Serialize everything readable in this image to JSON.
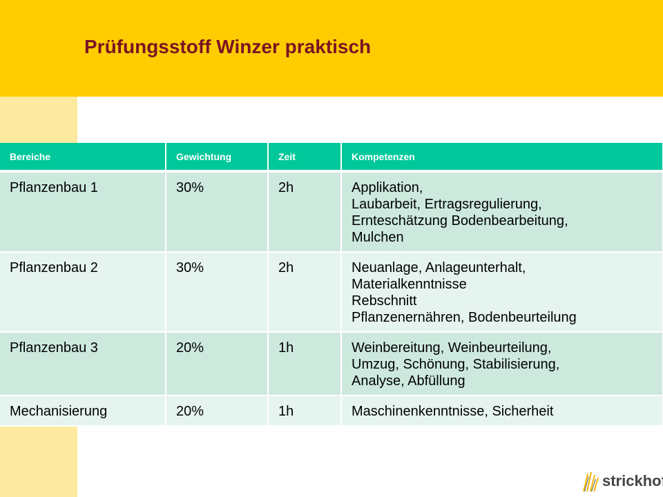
{
  "slide": {
    "title": "Prüfungsstoff Winzer praktisch"
  },
  "table": {
    "headers": [
      "Bereiche",
      "Gewichtung",
      "Zeit",
      "Kompetenzen"
    ],
    "rows": [
      {
        "bereich": "Pflanzenbau 1",
        "gewichtung": "30%",
        "zeit": "2h",
        "kompetenzen": [
          "Applikation,",
          "Laubarbeit, Ertragsregulierung,",
          "Ernteschätzung Bodenbearbeitung,",
          "Mulchen"
        ]
      },
      {
        "bereich": "Pflanzenbau 2",
        "gewichtung": "30%",
        "zeit": "2h",
        "kompetenzen": [
          "Neuanlage, Anlageunterhalt,",
          "Materialkenntnisse",
          "Rebschnitt",
          "Pflanzenernähren, Bodenbeurteilung"
        ]
      },
      {
        "bereich": "Pflanzenbau 3",
        "gewichtung": "20%",
        "zeit": "1h",
        "kompetenzen": [
          "Weinbereitung, Weinbeurteilung,",
          "Umzug, Schönung, Stabilisierung,",
          "Analyse, Abfüllung"
        ]
      },
      {
        "bereich": "Mechanisierung",
        "gewichtung": "20%",
        "zeit": "1h",
        "kompetenzen": [
          "Maschinenkenntnisse, Sicherheit"
        ]
      }
    ]
  },
  "logo": {
    "text": "strickhof"
  },
  "colors": {
    "header_band": "#ffcc00",
    "side_band": "#fdeaa0",
    "title": "#7a1424",
    "table_header": "#00c89a",
    "row_odd": "#cde9de",
    "row_even": "#e6f4ef"
  }
}
